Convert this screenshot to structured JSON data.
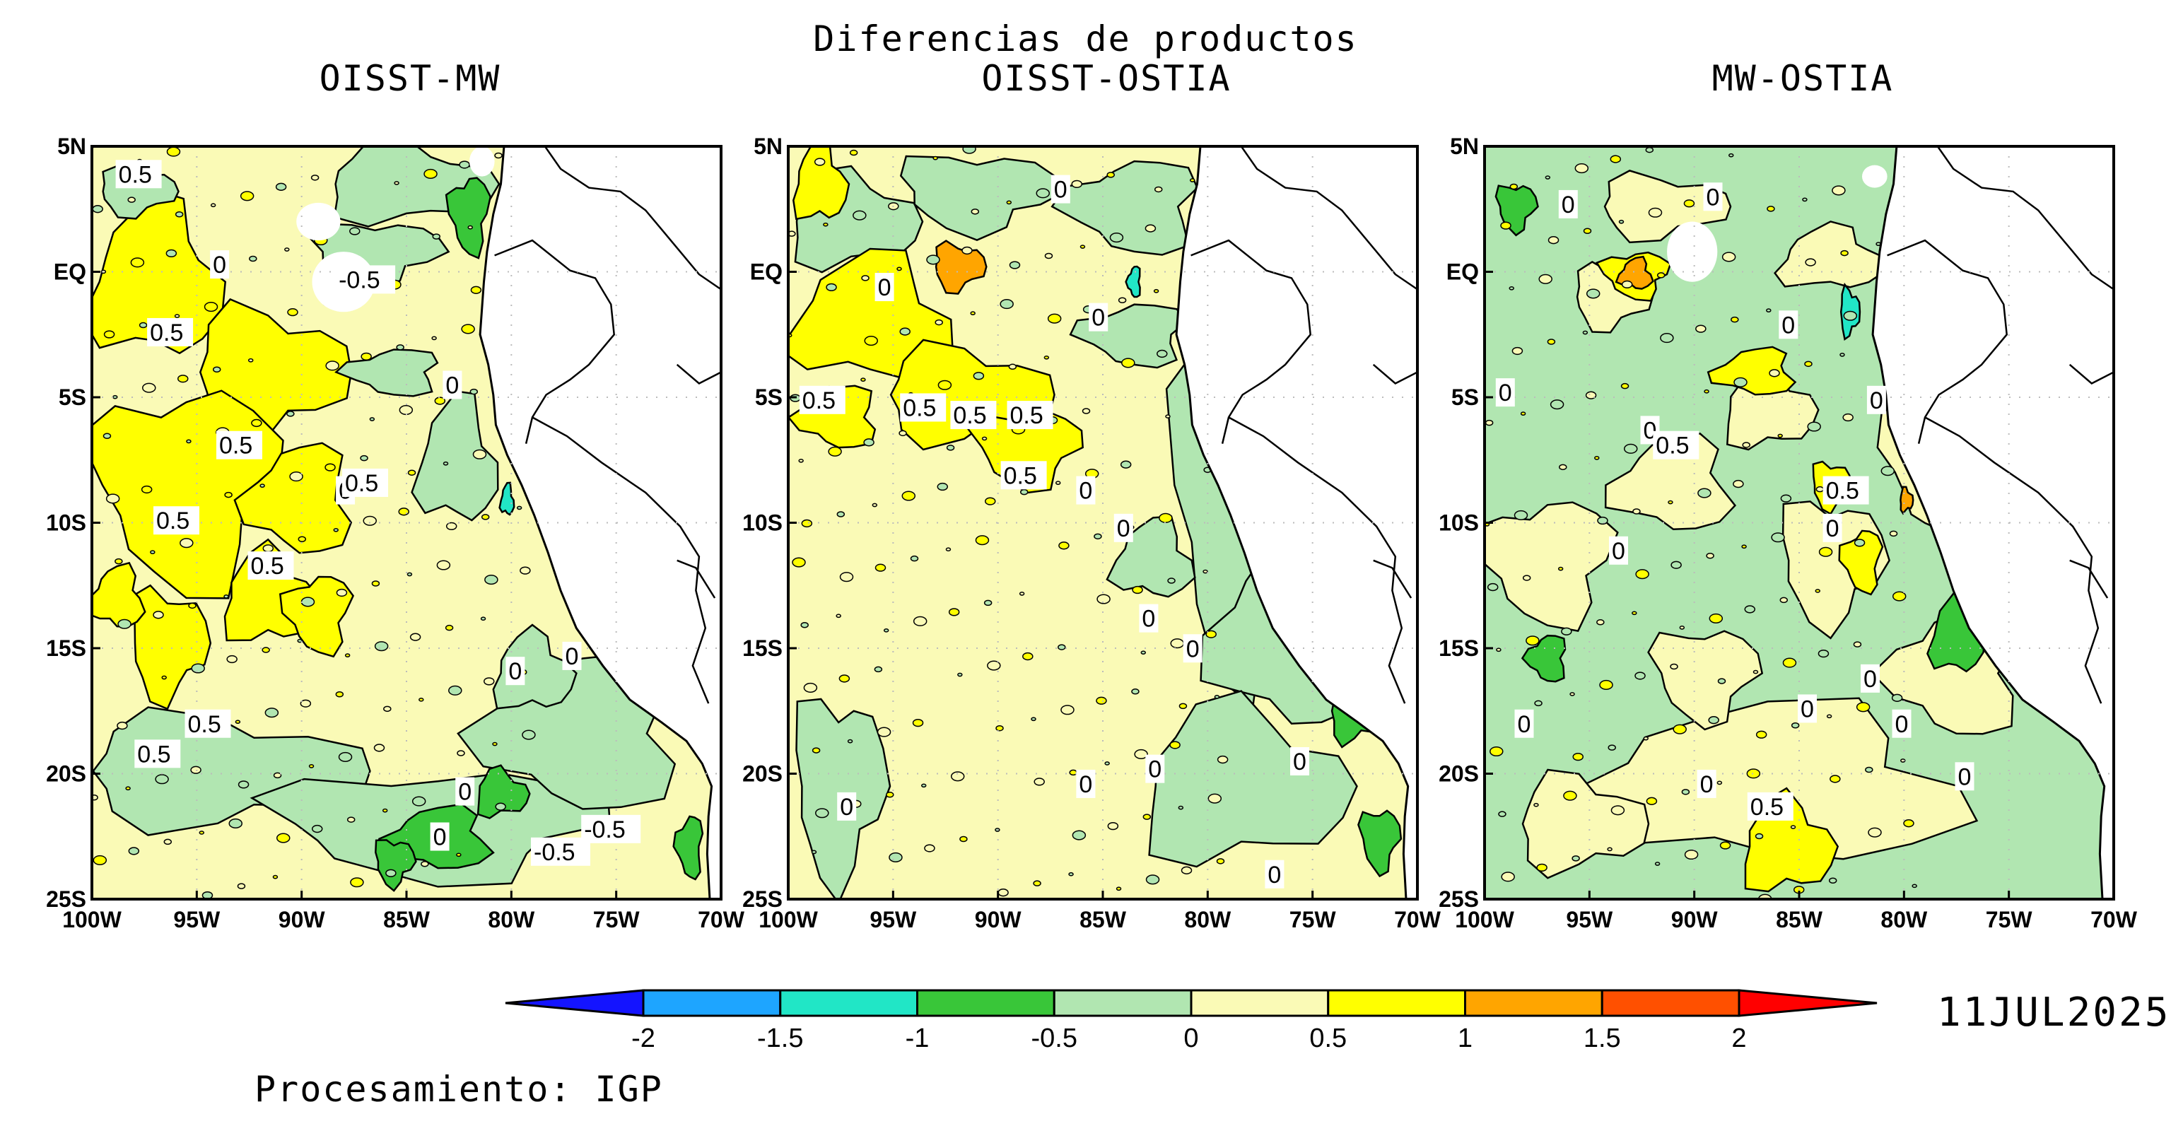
{
  "main_title": "Diferencias de productos",
  "date": "11JUL2025",
  "credit": "Procesamiento: IGP",
  "panels": [
    {
      "title": "OISST-MW",
      "contour_labels": [
        "0.5",
        "0",
        "-0.5",
        "0.5",
        "0.5",
        "0",
        "0",
        "0.5",
        "0.5",
        "0.5",
        "0.5",
        "0",
        "0",
        "0.5",
        "0",
        "0",
        "-0.5",
        "-0.5"
      ]
    },
    {
      "title": "OISST-OSTIA",
      "contour_labels": [
        "0",
        "0.5",
        "0",
        "0",
        "0.5",
        "0.5",
        "0.5",
        "0.5",
        "0",
        "0",
        "0",
        "0",
        "0",
        "0",
        "0",
        "0",
        "0"
      ]
    },
    {
      "title": "MW-OSTIA",
      "contour_labels": [
        "0",
        "0",
        "0",
        "0",
        "0",
        "0.5",
        "0",
        "0.5",
        "0",
        "0",
        "0",
        "0",
        "0",
        "0",
        "0",
        "0",
        "0.5"
      ]
    }
  ],
  "y_axis_labels": [
    "5N",
    "EQ",
    "5S",
    "10S",
    "15S",
    "20S",
    "25S"
  ],
  "x_axis_labels": [
    "100W",
    "95W",
    "90W",
    "85W",
    "80W",
    "75W",
    "70W"
  ],
  "colorbar": {
    "levels": [
      "-2",
      "-1.5",
      "-1",
      "-0.5",
      "0",
      "0.5",
      "1",
      "1.5",
      "2"
    ],
    "colors": [
      "#1414ff",
      "#1ea5ff",
      "#21e6c6",
      "#39c639",
      "#b1e6b1",
      "#fafab6",
      "#ffff00",
      "#ffa500",
      "#ff5000",
      "#ff0000"
    ]
  },
  "land_color": "#ffffff",
  "missing_color": "#ffffff"
}
